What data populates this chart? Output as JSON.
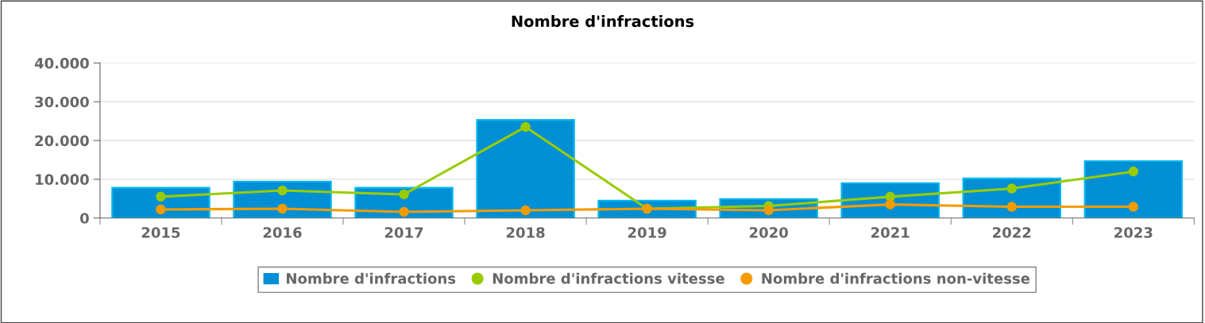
{
  "chart_data": {
    "type": "bar",
    "title": "Nombre d'infractions",
    "categories": [
      "2015",
      "2016",
      "2017",
      "2018",
      "2019",
      "2020",
      "2021",
      "2022",
      "2023"
    ],
    "series": [
      {
        "name": "Nombre d'infractions",
        "color": "#008fd5",
        "values": [
          7800,
          9400,
          7800,
          25300,
          4500,
          4900,
          9000,
          10200,
          14700
        ]
      },
      {
        "name": "Nombre d'infractions vitesse",
        "color": "#99cc00",
        "type": "line",
        "values": [
          5500,
          7100,
          6100,
          23500,
          2400,
          3100,
          5500,
          7600,
          12000
        ]
      },
      {
        "name": "Nombre d'infractions non-vitesse",
        "color": "#f39c00",
        "type": "line",
        "values": [
          2200,
          2400,
          1600,
          2000,
          2400,
          2000,
          3500,
          2900,
          2900
        ]
      }
    ],
    "ylim": [
      0,
      40000
    ],
    "yticks": [
      {
        "value": 0,
        "label": "0"
      },
      {
        "value": 10000,
        "label": "10.000"
      },
      {
        "value": 20000,
        "label": "20.000"
      },
      {
        "value": 30000,
        "label": "30.000"
      },
      {
        "value": 40000,
        "label": "40.000"
      }
    ],
    "grid": "y",
    "legend": "bottom",
    "marker": "circle",
    "line_style": "solid"
  }
}
